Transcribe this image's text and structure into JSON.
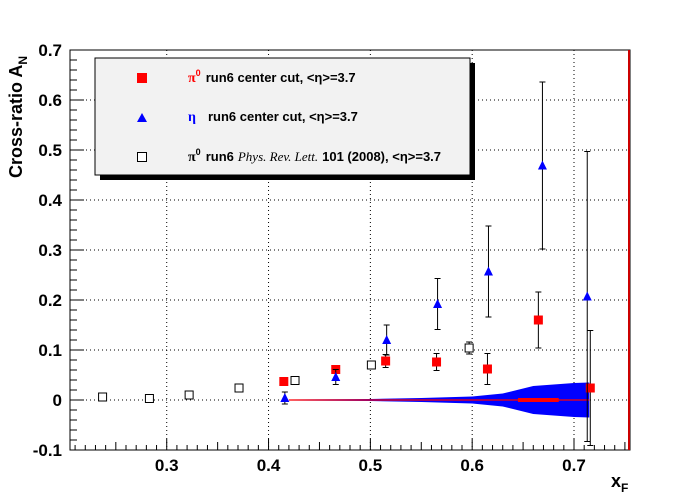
{
  "chart_data": {
    "type": "scatter",
    "ylabel_main": "Cross-ratio A",
    "ylabel_sub": "N",
    "xlabel_main": "x",
    "xlabel_sub": "F",
    "xlim": [
      0.205,
      0.755
    ],
    "ylim": [
      -0.1,
      0.7
    ],
    "x_ticks": [
      0.3,
      0.4,
      0.5,
      0.6,
      0.7
    ],
    "x_tick_labels": [
      "0.3",
      "0.4",
      "0.5",
      "0.6",
      "0.7"
    ],
    "y_ticks": [
      -0.1,
      0,
      0.1,
      0.2,
      0.3,
      0.4,
      0.5,
      0.6,
      0.7
    ],
    "y_tick_labels": [
      "-0.1",
      "0",
      "0.1",
      "0.2",
      "0.3",
      "0.4",
      "0.5",
      "0.6",
      "0.7"
    ],
    "grid": true,
    "legend_position": "top-left",
    "series": [
      {
        "marker": "filled-square",
        "color": "#ff0000",
        "legend_symbol": "π",
        "legend_symbol_sup": "0",
        "legend_text": "run6 center cut, <η>=3.7",
        "points": [
          {
            "x": 0.415,
            "y": 0.037,
            "err": 0.008
          },
          {
            "x": 0.466,
            "y": 0.061,
            "err": 0.008
          },
          {
            "x": 0.515,
            "y": 0.078,
            "err": 0.013
          },
          {
            "x": 0.565,
            "y": 0.076,
            "err": 0.017
          },
          {
            "x": 0.615,
            "y": 0.062,
            "err": 0.031
          },
          {
            "x": 0.665,
            "y": 0.16,
            "err": 0.056
          },
          {
            "x": 0.716,
            "y": 0.024,
            "err": 0.115
          }
        ]
      },
      {
        "marker": "filled-triangle",
        "color": "#0000ff",
        "legend_symbol": "η",
        "legend_symbol_sup": "",
        "legend_text": "run6 center cut, <η>=3.7",
        "points": [
          {
            "x": 0.416,
            "y": 0.004,
            "err": 0.012
          },
          {
            "x": 0.466,
            "y": 0.046,
            "err": 0.015
          },
          {
            "x": 0.516,
            "y": 0.12,
            "err": 0.03
          },
          {
            "x": 0.566,
            "y": 0.192,
            "err": 0.051
          },
          {
            "x": 0.616,
            "y": 0.257,
            "err": 0.091
          },
          {
            "x": 0.669,
            "y": 0.469,
            "err": 0.167
          },
          {
            "x": 0.713,
            "y": 0.207,
            "err": 0.29
          }
        ]
      },
      {
        "marker": "open-square",
        "color": "#000000",
        "legend_symbol": "π",
        "legend_symbol_sup": "0",
        "legend_text_a": "run6",
        "legend_text_italic": "Phys. Rev. Lett.",
        "legend_text_b": "101 (2008), <η>=3.7",
        "points": [
          {
            "x": 0.237,
            "y": 0.006,
            "err": 0
          },
          {
            "x": 0.283,
            "y": 0.003,
            "err": 0
          },
          {
            "x": 0.322,
            "y": 0.01,
            "err": 0
          },
          {
            "x": 0.371,
            "y": 0.024,
            "err": 0
          },
          {
            "x": 0.426,
            "y": 0.039,
            "err": 0
          },
          {
            "x": 0.501,
            "y": 0.07,
            "err": 0.006
          },
          {
            "x": 0.597,
            "y": 0.104,
            "err": 0.012
          }
        ]
      }
    ],
    "systematic_band": {
      "color": "#0000ff",
      "points": [
        {
          "x": 0.42,
          "hw": 0.001
        },
        {
          "x": 0.5,
          "hw": 0.002
        },
        {
          "x": 0.55,
          "hw": 0.004
        },
        {
          "x": 0.6,
          "hw": 0.007
        },
        {
          "x": 0.63,
          "hw": 0.013
        },
        {
          "x": 0.66,
          "hw": 0.028
        },
        {
          "x": 0.7,
          "hw": 0.034
        },
        {
          "x": 0.715,
          "hw": 0.035
        }
      ],
      "center_line_color": "#ff0000",
      "center_line_from": 0.42,
      "center_line_to": 0.715
    }
  }
}
